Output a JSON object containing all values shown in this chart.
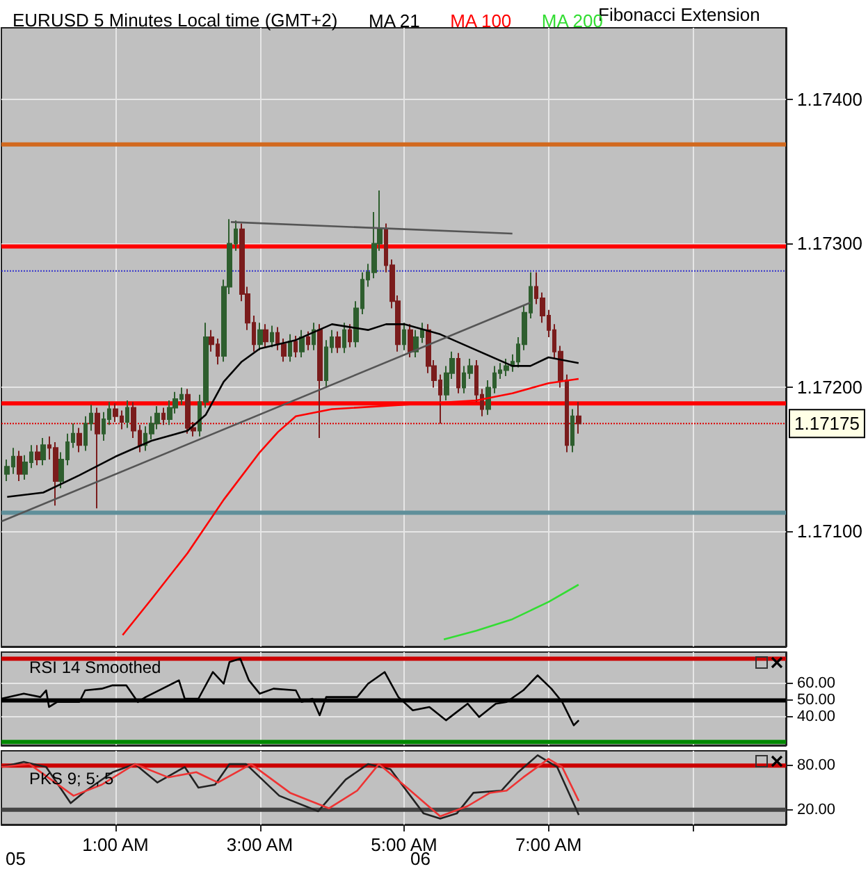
{
  "chart_data": [
    {
      "type": "candlestick",
      "title": "EURUSD 5 Minutes Local time (GMT+2)",
      "annotations": [
        "Fibonacci Extension"
      ],
      "x": [
        -0.5,
        -0.417,
        -0.333,
        -0.25,
        -0.167,
        -0.083,
        0,
        0.083,
        0.167,
        0.25,
        0.333,
        0.417,
        0.5,
        0.583,
        0.667,
        0.75,
        0.833,
        0.917,
        1,
        1.083,
        1.167,
        1.25,
        1.333,
        1.417,
        1.5,
        1.583,
        1.667,
        1.75,
        1.833,
        1.917,
        2,
        2.083,
        2.167,
        2.25,
        2.333,
        2.417,
        2.5,
        2.583,
        2.667,
        2.75,
        2.833,
        2.917,
        3,
        3.083,
        3.167,
        3.25,
        3.333,
        3.417,
        3.5,
        3.583,
        3.667,
        3.75,
        3.833,
        3.917,
        4,
        4.083,
        4.167,
        4.25,
        4.333,
        4.417,
        4.5,
        4.583,
        4.667,
        4.75,
        4.833,
        4.917,
        5,
        5.083,
        5.167,
        5.25,
        5.333,
        5.417,
        5.5,
        5.583,
        5.667,
        5.75,
        5.833,
        5.917,
        6,
        6.083,
        6.167,
        6.25,
        6.333,
        6.417,
        6.5,
        6.583,
        6.667,
        6.75,
        6.833,
        6.917,
        7,
        7.083,
        7.167,
        7.25,
        7.333,
        7.417
      ],
      "ohlc": [
        [
          1.1714,
          1.1715,
          1.17135,
          1.17145
        ],
        [
          1.17145,
          1.17158,
          1.1714,
          1.17152
        ],
        [
          1.17152,
          1.17156,
          1.17135,
          1.1714
        ],
        [
          1.1714,
          1.17153,
          1.17136,
          1.17148
        ],
        [
          1.17148,
          1.1716,
          1.17144,
          1.17155
        ],
        [
          1.17155,
          1.1716,
          1.17146,
          1.1715
        ],
        [
          1.1715,
          1.17165,
          1.17146,
          1.1716
        ],
        [
          1.1716,
          1.17166,
          1.1715,
          1.17158
        ],
        [
          1.17158,
          1.17162,
          1.17118,
          1.17135
        ],
        [
          1.17135,
          1.17155,
          1.1713,
          1.1715
        ],
        [
          1.1715,
          1.17168,
          1.17146,
          1.17162
        ],
        [
          1.17162,
          1.17175,
          1.17158,
          1.17168
        ],
        [
          1.17168,
          1.17172,
          1.17155,
          1.1716
        ],
        [
          1.1716,
          1.1718,
          1.17156,
          1.17175
        ],
        [
          1.17175,
          1.17188,
          1.1717,
          1.17182
        ],
        [
          1.17182,
          1.17186,
          1.17116,
          1.17168
        ],
        [
          1.17168,
          1.17183,
          1.17163,
          1.17178
        ],
        [
          1.17178,
          1.1719,
          1.17174,
          1.17185
        ],
        [
          1.17185,
          1.17189,
          1.17176,
          1.1718
        ],
        [
          1.1718,
          1.17184,
          1.17171,
          1.17176
        ],
        [
          1.17176,
          1.17191,
          1.17172,
          1.17186
        ],
        [
          1.17186,
          1.1719,
          1.17165,
          1.1717
        ],
        [
          1.1717,
          1.17174,
          1.17155,
          1.1716
        ],
        [
          1.1716,
          1.17173,
          1.17156,
          1.17168
        ],
        [
          1.17168,
          1.1718,
          1.17164,
          1.17175
        ],
        [
          1.17175,
          1.17187,
          1.17171,
          1.17182
        ],
        [
          1.17182,
          1.17186,
          1.17174,
          1.17178
        ],
        [
          1.17178,
          1.17191,
          1.17174,
          1.17186
        ],
        [
          1.17186,
          1.17197,
          1.17182,
          1.17192
        ],
        [
          1.17192,
          1.172,
          1.17188,
          1.17195
        ],
        [
          1.17195,
          1.17199,
          1.17168,
          1.17172
        ],
        [
          1.17172,
          1.17176,
          1.17166,
          1.1717
        ],
        [
          1.1717,
          1.17195,
          1.17166,
          1.1719
        ],
        [
          1.1719,
          1.17245,
          1.17186,
          1.17235
        ],
        [
          1.17235,
          1.1724,
          1.17225,
          1.1723
        ],
        [
          1.1723,
          1.17234,
          1.17216,
          1.17222
        ],
        [
          1.17222,
          1.17275,
          1.17218,
          1.1727
        ],
        [
          1.1727,
          1.17317,
          1.17265,
          1.173
        ],
        [
          1.173,
          1.17316,
          1.17295,
          1.1731
        ],
        [
          1.1731,
          1.17314,
          1.1726,
          1.17265
        ],
        [
          1.17265,
          1.1727,
          1.1724,
          1.17245
        ],
        [
          1.17245,
          1.1725,
          1.17225,
          1.1723
        ],
        [
          1.1723,
          1.17245,
          1.17226,
          1.1724
        ],
        [
          1.1724,
          1.17244,
          1.17228,
          1.17232
        ],
        [
          1.17232,
          1.17243,
          1.17228,
          1.17238
        ],
        [
          1.17238,
          1.17242,
          1.17226,
          1.1723
        ],
        [
          1.1723,
          1.17234,
          1.17218,
          1.17222
        ],
        [
          1.17222,
          1.17237,
          1.17218,
          1.17232
        ],
        [
          1.17232,
          1.17236,
          1.17221,
          1.17225
        ],
        [
          1.17225,
          1.1724,
          1.17221,
          1.17235
        ],
        [
          1.17235,
          1.17239,
          1.17226,
          1.1723
        ],
        [
          1.1723,
          1.17245,
          1.17226,
          1.1724
        ],
        [
          1.1724,
          1.17244,
          1.17165,
          1.17205
        ],
        [
          1.17205,
          1.17233,
          1.172,
          1.17228
        ],
        [
          1.17228,
          1.1724,
          1.17224,
          1.17235
        ],
        [
          1.17235,
          1.17239,
          1.17224,
          1.17228
        ],
        [
          1.17228,
          1.17245,
          1.17224,
          1.1724
        ],
        [
          1.1724,
          1.17244,
          1.17228,
          1.17232
        ],
        [
          1.17232,
          1.1726,
          1.17228,
          1.17255
        ],
        [
          1.17255,
          1.1728,
          1.17251,
          1.17275
        ],
        [
          1.17275,
          1.17286,
          1.1727,
          1.1728
        ],
        [
          1.1728,
          1.17322,
          1.17276,
          1.173
        ],
        [
          1.173,
          1.17337,
          1.17295,
          1.1731
        ],
        [
          1.1731,
          1.17314,
          1.1728,
          1.17285
        ],
        [
          1.17285,
          1.17289,
          1.17255,
          1.1726
        ],
        [
          1.1726,
          1.17264,
          1.17225,
          1.1723
        ],
        [
          1.1723,
          1.17245,
          1.17226,
          1.1724
        ],
        [
          1.1724,
          1.17244,
          1.17221,
          1.17225
        ],
        [
          1.17225,
          1.1724,
          1.17221,
          1.17235
        ],
        [
          1.17235,
          1.17245,
          1.17231,
          1.1724
        ],
        [
          1.1724,
          1.17244,
          1.1721,
          1.17215
        ],
        [
          1.17215,
          1.17219,
          1.172,
          1.17205
        ],
        [
          1.17205,
          1.17209,
          1.17175,
          1.17195
        ],
        [
          1.17195,
          1.17215,
          1.17191,
          1.1721
        ],
        [
          1.1721,
          1.17225,
          1.17206,
          1.1722
        ],
        [
          1.1722,
          1.17224,
          1.17196,
          1.172
        ],
        [
          1.172,
          1.17215,
          1.17196,
          1.1721
        ],
        [
          1.1721,
          1.1722,
          1.17206,
          1.17215
        ],
        [
          1.17215,
          1.17219,
          1.1719,
          1.17195
        ],
        [
          1.17195,
          1.17199,
          1.1718,
          1.17185
        ],
        [
          1.17185,
          1.17205,
          1.17181,
          1.172
        ],
        [
          1.172,
          1.17215,
          1.17196,
          1.1721
        ],
        [
          1.1721,
          1.17217,
          1.17206,
          1.17212
        ],
        [
          1.17212,
          1.1722,
          1.17208,
          1.17215
        ],
        [
          1.17215,
          1.17223,
          1.17211,
          1.17218
        ],
        [
          1.17218,
          1.17235,
          1.17214,
          1.1723
        ],
        [
          1.1723,
          1.17257,
          1.17226,
          1.17252
        ],
        [
          1.17252,
          1.1728,
          1.17248,
          1.1727
        ],
        [
          1.1727,
          1.1728,
          1.17258,
          1.17262
        ],
        [
          1.17262,
          1.17266,
          1.17245,
          1.1725
        ],
        [
          1.1725,
          1.17254,
          1.17235,
          1.1724
        ],
        [
          1.1724,
          1.17244,
          1.1722,
          1.17225
        ],
        [
          1.17225,
          1.17229,
          1.172,
          1.17205
        ],
        [
          1.17205,
          1.17209,
          1.17155,
          1.1716
        ],
        [
          1.1716,
          1.17185,
          1.17155,
          1.1718
        ],
        [
          1.1718,
          1.1719,
          1.17168,
          1.17175
        ]
      ],
      "colors": [
        "#2e5e2e",
        "#2e5e2e",
        "#7a1c1c",
        "#2e5e2e",
        "#2e5e2e",
        "#7a1c1c",
        "#2e5e2e",
        "#7a1c1c",
        "#7a1c1c",
        "#2e5e2e",
        "#2e5e2e",
        "#2e5e2e",
        "#7a1c1c",
        "#2e5e2e",
        "#2e5e2e",
        "#7a1c1c",
        "#2e5e2e",
        "#2e5e2e",
        "#7a1c1c",
        "#7a1c1c",
        "#2e5e2e",
        "#7a1c1c",
        "#7a1c1c",
        "#2e5e2e",
        "#2e5e2e",
        "#2e5e2e",
        "#7a1c1c",
        "#2e5e2e",
        "#2e5e2e",
        "#2e5e2e",
        "#7a1c1c",
        "#7a1c1c",
        "#2e5e2e",
        "#2e5e2e",
        "#7a1c1c",
        "#7a1c1c",
        "#2e5e2e",
        "#2e5e2e",
        "#2e5e2e",
        "#7a1c1c",
        "#7a1c1c",
        "#7a1c1c",
        "#2e5e2e",
        "#7a1c1c",
        "#2e5e2e",
        "#7a1c1c",
        "#7a1c1c",
        "#2e5e2e",
        "#7a1c1c",
        "#2e5e2e",
        "#7a1c1c",
        "#2e5e2e",
        "#7a1c1c",
        "#2e5e2e",
        "#2e5e2e",
        "#7a1c1c",
        "#2e5e2e",
        "#7a1c1c",
        "#2e5e2e",
        "#2e5e2e",
        "#2e5e2e",
        "#2e5e2e",
        "#2e5e2e",
        "#7a1c1c",
        "#7a1c1c",
        "#7a1c1c",
        "#2e5e2e",
        "#7a1c1c",
        "#2e5e2e",
        "#2e5e2e",
        "#7a1c1c",
        "#7a1c1c",
        "#7a1c1c",
        "#2e5e2e",
        "#2e5e2e",
        "#7a1c1c",
        "#2e5e2e",
        "#2e5e2e",
        "#7a1c1c",
        "#7a1c1c",
        "#2e5e2e",
        "#2e5e2e",
        "#2e5e2e",
        "#2e5e2e",
        "#2e5e2e",
        "#2e5e2e",
        "#2e5e2e",
        "#2e5e2e",
        "#7a1c1c",
        "#7a1c1c",
        "#7a1c1c",
        "#7a1c1c",
        "#7a1c1c",
        "#7a1c1c",
        "#2e5e2e",
        "#7a1c1c"
      ],
      "series": [
        {
          "type": "line",
          "name": "MA 21",
          "color": "#000000",
          "x": [
            -0.5,
            0,
            0.5,
            1,
            1.5,
            2,
            2.25,
            2.5,
            2.75,
            3,
            3.5,
            4,
            4.5,
            4.75,
            5,
            5.5,
            6,
            6.5,
            6.75,
            7,
            7.417
          ],
          "values": [
            1.17124,
            1.17127,
            1.17139,
            1.17152,
            1.17163,
            1.1717,
            1.17181,
            1.17204,
            1.17218,
            1.17227,
            1.17233,
            1.17244,
            1.1724,
            1.17244,
            1.17244,
            1.17237,
            1.17226,
            1.17215,
            1.17215,
            1.17221,
            1.17217
          ]
        },
        {
          "type": "line",
          "name": "MA 100",
          "color": "#ff0000",
          "x": [
            1.1,
            1.5,
            2,
            2.5,
            3,
            3.25,
            3.5,
            4,
            5,
            6,
            6.5,
            7,
            7.417
          ],
          "values": [
            1.17028,
            1.17053,
            1.17085,
            1.17122,
            1.17155,
            1.17169,
            1.1718,
            1.17185,
            1.17188,
            1.17191,
            1.17196,
            1.17203,
            1.17206
          ]
        },
        {
          "type": "line",
          "name": "MA 200",
          "color": "#33dd33",
          "x": [
            5.55,
            6,
            6.5,
            7,
            7.417
          ],
          "values": [
            1.17025,
            1.17031,
            1.17039,
            1.17051,
            1.17063
          ]
        },
        {
          "type": "line",
          "color": "#555555",
          "x": [
            -0.58,
            6.75
          ],
          "values": [
            1.17107,
            1.17259
          ]
        },
        {
          "type": "line",
          "color": "#555555",
          "x": [
            2.6,
            6.5
          ],
          "values": [
            1.17315,
            1.17307
          ]
        }
      ],
      "ref_lines": [
        {
          "axis": "y",
          "value": 1.17369,
          "color": "#d2691e"
        },
        {
          "axis": "y",
          "value": 1.17298,
          "color": "#ff0000"
        },
        {
          "axis": "y",
          "value": 1.17281,
          "color": "#3333cc",
          "line_style": "dotted"
        },
        {
          "axis": "y",
          "value": 1.17189,
          "color": "#ff0000"
        },
        {
          "axis": "y",
          "value": 1.17175,
          "label": "1.17175",
          "color": "#dd0000",
          "line_style": "dotted"
        },
        {
          "axis": "y",
          "value": 1.17113,
          "color": "#5f8f9a"
        }
      ],
      "xlim": [
        -0.58,
        10.29
      ],
      "xticks": [
        {
          "value": 1,
          "label": null
        },
        {
          "value": 3,
          "label": null
        },
        {
          "value": 5,
          "label": null
        },
        {
          "value": 7,
          "label": null
        },
        {
          "value": 9,
          "label": null
        }
      ],
      "ylim": [
        1.1702,
        1.1745
      ],
      "yticks": [
        {
          "value": 1.171,
          "label": "1.17100"
        },
        {
          "value": 1.172,
          "label": "1.17200"
        },
        {
          "value": 1.173,
          "label": "1.17300"
        },
        {
          "value": 1.174,
          "label": "1.17400"
        }
      ],
      "grid": true,
      "legend": "top",
      "tick_labels": "y"
    },
    {
      "type": "line",
      "title": "RSI 14 Smoothed",
      "series": [
        {
          "color": "#000000",
          "x": [
            -0.58,
            -0.27,
            -0.04,
            0.04,
            0.08,
            0.19,
            0.5,
            0.58,
            0.81,
            0.96,
            1.15,
            1.31,
            1.42,
            1.65,
            1.88,
            1.96,
            2.15,
            2.35,
            2.5,
            2.58,
            2.73,
            2.85,
            3,
            3.19,
            3.5,
            3.58,
            3.73,
            3.83,
            3.92,
            4.04,
            4.35,
            4.5,
            4.73,
            4.92,
            5.12,
            5.35,
            5.58,
            5.73,
            5.88,
            6.04,
            6.27,
            6.42,
            6.65,
            6.85,
            7.04,
            7.19,
            7.35,
            7.42
          ],
          "values": [
            51,
            54,
            52,
            56,
            46,
            49,
            49,
            56,
            57,
            59,
            59,
            49,
            52,
            57,
            62,
            51,
            51,
            67,
            60,
            73,
            75,
            62,
            54,
            57,
            56,
            49,
            51,
            41,
            52,
            52,
            52,
            60,
            67,
            52,
            44,
            46,
            38,
            43,
            48,
            40,
            48,
            49,
            56,
            65,
            57,
            49,
            35,
            38
          ]
        }
      ],
      "ref_lines": [
        {
          "axis": "y",
          "value": 75,
          "color": "#cc0000"
        },
        {
          "axis": "y",
          "value": 50,
          "color": "#000000"
        },
        {
          "axis": "y",
          "value": 25,
          "color": "#008800"
        }
      ],
      "xlim": [
        -0.58,
        10.29
      ],
      "xticks": [
        {
          "value": 1,
          "label": null
        },
        {
          "value": 3,
          "label": null
        },
        {
          "value": 5,
          "label": null
        },
        {
          "value": 7,
          "label": null
        },
        {
          "value": 9,
          "label": null
        }
      ],
      "ylim": [
        23,
        79
      ],
      "yticks": [
        {
          "value": 40,
          "label": "40.00"
        },
        {
          "value": 50,
          "label": "50.00"
        },
        {
          "value": 60,
          "label": "60.00"
        }
      ],
      "grid": true,
      "tick_labels": "y"
    },
    {
      "type": "line",
      "title": "PKS 9; 5; 5",
      "annotations": [
        "05",
        "06"
      ],
      "series": [
        {
          "color": "#222222",
          "x": [
            -0.58,
            -0.27,
            0.04,
            0.38,
            0.58,
            0.96,
            1.27,
            1.58,
            1.96,
            2.15,
            2.38,
            2.58,
            2.81,
            3.27,
            3.81,
            4.19,
            4.5,
            4.81,
            5.27,
            5.5,
            5.73,
            5.96,
            6.35,
            6.58,
            6.85,
            7.12,
            7.42
          ],
          "values": [
            78,
            85,
            78,
            29,
            45,
            71,
            82,
            57,
            78,
            50,
            54,
            82,
            82,
            39,
            18,
            61,
            82,
            75,
            15,
            8,
            15,
            43,
            46,
            71,
            94,
            78,
            13
          ]
        },
        {
          "color": "#ee3333",
          "x": [
            -0.58,
            -0.19,
            0.42,
            0.81,
            1.27,
            1.73,
            2.12,
            2.42,
            2.88,
            3.42,
            3.96,
            4.35,
            4.65,
            5.04,
            5.5,
            5.88,
            6.19,
            6.42,
            6.65,
            7,
            7.19,
            7.42
          ],
          "values": [
            78,
            82,
            39,
            54,
            82,
            64,
            71,
            57,
            82,
            43,
            22,
            46,
            82,
            50,
            11,
            25,
            43,
            46,
            64,
            89,
            78,
            32
          ]
        }
      ],
      "ref_lines": [
        {
          "axis": "y",
          "value": 80,
          "color": "#cc0000"
        },
        {
          "axis": "y",
          "value": 20,
          "color": "#444444"
        }
      ],
      "xlim": [
        -0.58,
        10.29
      ],
      "xticks": [
        {
          "value": 1,
          "label": "1:00 AM"
        },
        {
          "value": 3,
          "label": "3:00 AM"
        },
        {
          "value": 5,
          "label": "5:00 AM"
        },
        {
          "value": 7,
          "label": "7:00 AM"
        },
        {
          "value": 9,
          "label": null
        }
      ],
      "ylim": [
        0,
        100
      ],
      "yticks": [
        {
          "value": 20,
          "label": "20.00"
        },
        {
          "value": 80,
          "label": "80.00"
        }
      ],
      "grid": true
    }
  ]
}
